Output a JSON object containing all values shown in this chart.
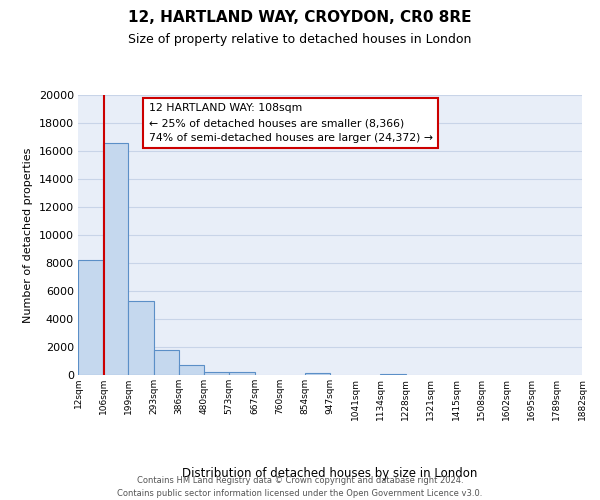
{
  "title_line1": "12, HARTLAND WAY, CROYDON, CR0 8RE",
  "title_line2": "Size of property relative to detached houses in London",
  "xlabel": "Distribution of detached houses by size in London",
  "ylabel": "Number of detached properties",
  "bin_edges": [
    12,
    106,
    199,
    293,
    386,
    480,
    573,
    667,
    760,
    854,
    947,
    1041,
    1134,
    1228,
    1321,
    1415,
    1508,
    1602,
    1695,
    1789,
    1882
  ],
  "bar_heights": [
    8200,
    16600,
    5300,
    1800,
    700,
    250,
    220,
    0,
    0,
    150,
    0,
    0,
    80,
    0,
    0,
    0,
    0,
    0,
    0,
    0
  ],
  "bar_color": "#c5d8ee",
  "bar_edge_color": "#5b8fc7",
  "property_size": 108,
  "red_line_color": "#cc0000",
  "annotation_title": "12 HARTLAND WAY: 108sqm",
  "annotation_line1": "← 25% of detached houses are smaller (8,366)",
  "annotation_line2": "74% of semi-detached houses are larger (24,372) →",
  "annotation_box_color": "#ffffff",
  "annotation_box_edge": "#cc0000",
  "ylim_max": 20000,
  "ytick_step": 2000,
  "bg_color": "#e8eef8",
  "grid_color": "#c8d4e8",
  "footer_line1": "Contains HM Land Registry data © Crown copyright and database right 2024.",
  "footer_line2": "Contains public sector information licensed under the Open Government Licence v3.0."
}
